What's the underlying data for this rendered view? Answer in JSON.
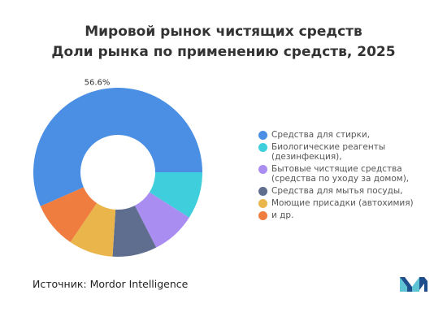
{
  "chart_data": {
    "type": "pie",
    "donut": true,
    "title": "Мировой рынок чистящих средств",
    "subtitle": "Доли рынка по применению средств, 2025",
    "series": [
      {
        "label": "Средства для стирки,",
        "value": 56.6,
        "color": "#4a8fe3",
        "data_label": "56.6%"
      },
      {
        "label": "Биологические реагенты (дезинфекция),",
        "value": 9.0,
        "color": "#3fcfdc",
        "data_label": ""
      },
      {
        "label": "Бытовые чистящие средства (средства по уходу за домом),",
        "value": 8.5,
        "color": "#a98df0",
        "data_label": ""
      },
      {
        "label": "Средства для мытья посуды,",
        "value": 8.5,
        "color": "#5f6e8f",
        "data_label": ""
      },
      {
        "label": "Моющие присадки (автохимия)",
        "value": 8.5,
        "color": "#eab54a",
        "data_label": ""
      },
      {
        "label": "и др.",
        "value": 8.9,
        "color": "#ee7d3f",
        "data_label": ""
      }
    ],
    "legend_position": "right"
  },
  "source_text": "Источник:  Mordor Intelligence",
  "logo": {
    "colors": [
      "#5ec3d2",
      "#1e4f8c"
    ]
  }
}
